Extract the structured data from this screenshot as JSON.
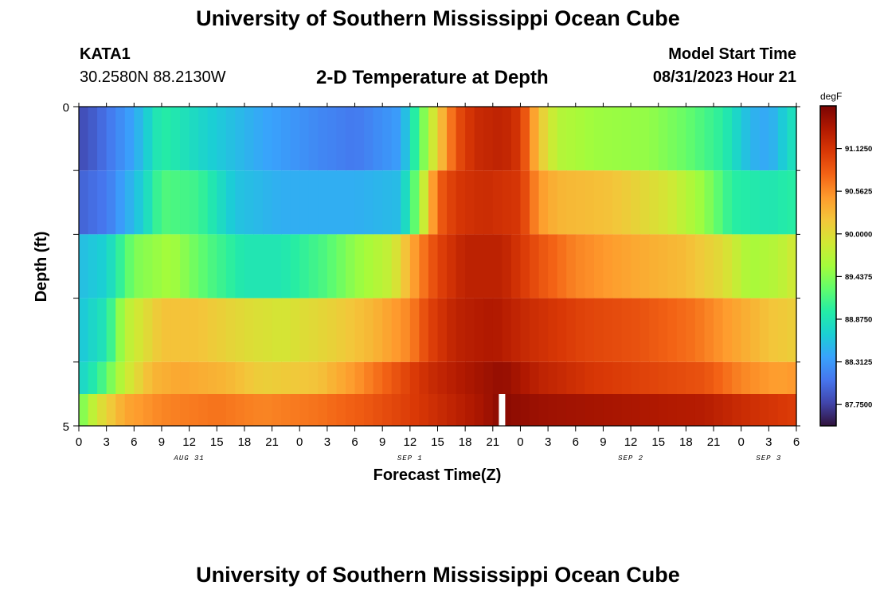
{
  "header": {
    "title": "University of Southern Mississippi Ocean Cube",
    "station": "KATA1",
    "coords": "30.2580N  88.2130W",
    "subtitle": "2-D Temperature at Depth",
    "model_start_label": "Model Start Time",
    "model_start_value": "08/31/2023 Hour 21"
  },
  "footer": {
    "title": "University of Southern Mississippi Ocean Cube"
  },
  "colorbar": {
    "unit": "degF",
    "min": 87.46875,
    "max": 91.6875,
    "tick_values": [
      91.125,
      90.5625,
      90.0,
      89.4375,
      88.875,
      88.3125,
      87.75
    ],
    "tick_labels": [
      "91.1250",
      "90.5625",
      "90.0000",
      "89.4375",
      "88.8750",
      "88.3125",
      "87.7500"
    ],
    "stops": [
      "#30123b",
      "#4145ab",
      "#4675ed",
      "#39a2fc",
      "#1bcfd4",
      "#24eca6",
      "#61fc6c",
      "#a4fc3b",
      "#d1e834",
      "#f3c63a",
      "#fe9b2d",
      "#f36315",
      "#d93806",
      "#b11901",
      "#7a0403"
    ]
  },
  "chart_data": {
    "type": "heatmap",
    "xlabel": "Forecast Time(Z)",
    "ylabel": "Depth (ft)",
    "y_tick_labels": [
      "0",
      "5"
    ],
    "ylim": [
      0,
      5
    ],
    "depth_bands": 5,
    "x_tick_labels": [
      "0",
      "3",
      "6",
      "9",
      "12",
      "15",
      "18",
      "21",
      "0",
      "3",
      "6",
      "9",
      "12",
      "15",
      "18",
      "21",
      "0",
      "3",
      "6",
      "9",
      "12",
      "15",
      "18",
      "21",
      "0",
      "3",
      "6"
    ],
    "x_start_hour": 0,
    "x_end_hour": 78,
    "date_labels": [
      {
        "label": "AUG 31",
        "hour": 12
      },
      {
        "label": "SEP 1",
        "hour": 36
      },
      {
        "label": "SEP 2",
        "hour": 60
      },
      {
        "label": "SEP 3",
        "hour": 75
      }
    ],
    "marker_hour": 46,
    "rows": [
      {
        "depth_band": "0-1 ft",
        "keys": [
          [
            0,
            87.8
          ],
          [
            2,
            87.95
          ],
          [
            6,
            88.4
          ],
          [
            9,
            89.0
          ],
          [
            14,
            88.7
          ],
          [
            20,
            88.4
          ],
          [
            26,
            88.2
          ],
          [
            30,
            88.1
          ],
          [
            35,
            88.35
          ],
          [
            37,
            89.2
          ],
          [
            39,
            90.1
          ],
          [
            41,
            90.9
          ],
          [
            43,
            91.2
          ],
          [
            46,
            91.3
          ],
          [
            48,
            91.1
          ],
          [
            50,
            90.2
          ],
          [
            52,
            89.7
          ],
          [
            56,
            89.55
          ],
          [
            62,
            89.5
          ],
          [
            66,
            89.3
          ],
          [
            70,
            89.0
          ],
          [
            73,
            88.5
          ],
          [
            75,
            88.4
          ],
          [
            78,
            88.9
          ]
        ]
      },
      {
        "depth_band": "1-2 ft",
        "keys": [
          [
            0,
            87.95
          ],
          [
            3,
            88.1
          ],
          [
            7,
            88.7
          ],
          [
            9,
            89.2
          ],
          [
            13,
            89.1
          ],
          [
            17,
            88.6
          ],
          [
            22,
            88.45
          ],
          [
            30,
            88.45
          ],
          [
            35,
            88.55
          ],
          [
            37,
            89.5
          ],
          [
            39,
            90.8
          ],
          [
            41,
            91.1
          ],
          [
            44,
            91.2
          ],
          [
            48,
            91.1
          ],
          [
            50,
            90.5
          ],
          [
            52,
            90.3
          ],
          [
            58,
            90.2
          ],
          [
            64,
            89.9
          ],
          [
            68,
            89.5
          ],
          [
            71,
            89.0
          ],
          [
            75,
            88.9
          ],
          [
            78,
            89.0
          ]
        ]
      },
      {
        "depth_band": "2-3 ft",
        "keys": [
          [
            0,
            88.55
          ],
          [
            3,
            88.7
          ],
          [
            6,
            89.4
          ],
          [
            10,
            89.6
          ],
          [
            14,
            89.2
          ],
          [
            18,
            88.9
          ],
          [
            22,
            88.9
          ],
          [
            27,
            89.2
          ],
          [
            30,
            89.5
          ],
          [
            34,
            89.8
          ],
          [
            37,
            90.6
          ],
          [
            39,
            91.0
          ],
          [
            42,
            91.3
          ],
          [
            46,
            91.3
          ],
          [
            50,
            90.9
          ],
          [
            54,
            90.6
          ],
          [
            60,
            90.4
          ],
          [
            66,
            90.25
          ],
          [
            70,
            90.0
          ],
          [
            73,
            89.6
          ],
          [
            76,
            89.7
          ],
          [
            78,
            89.9
          ]
        ]
      },
      {
        "depth_band": "3-4 ft",
        "keys": [
          [
            0,
            88.6
          ],
          [
            3,
            88.9
          ],
          [
            5,
            89.7
          ],
          [
            9,
            90.2
          ],
          [
            13,
            90.2
          ],
          [
            18,
            90.0
          ],
          [
            22,
            89.9
          ],
          [
            28,
            90.1
          ],
          [
            32,
            90.3
          ],
          [
            36,
            90.6
          ],
          [
            38,
            91.0
          ],
          [
            41,
            91.3
          ],
          [
            45,
            91.4
          ],
          [
            49,
            91.2
          ],
          [
            55,
            91.0
          ],
          [
            61,
            90.9
          ],
          [
            67,
            90.7
          ],
          [
            70,
            90.5
          ],
          [
            75,
            90.2
          ],
          [
            78,
            90.1
          ]
        ]
      },
      {
        "depth_band": "4-5 ft",
        "keys": [
          [
            0,
            88.7
          ],
          [
            2,
            89.0
          ],
          [
            5,
            89.8
          ],
          [
            8,
            90.3
          ],
          [
            11,
            90.4
          ],
          [
            16,
            90.3
          ],
          [
            20,
            90.1
          ],
          [
            26,
            90.2
          ],
          [
            30,
            90.5
          ],
          [
            34,
            90.85
          ],
          [
            38,
            91.2
          ],
          [
            42,
            91.4
          ],
          [
            46,
            91.55
          ],
          [
            50,
            91.3
          ],
          [
            56,
            91.1
          ],
          [
            62,
            91.0
          ],
          [
            68,
            90.9
          ],
          [
            72,
            90.6
          ],
          [
            76,
            90.45
          ],
          [
            78,
            90.5
          ]
        ]
      },
      {
        "depth_band": "5 ft",
        "keys": [
          [
            0,
            89.3
          ],
          [
            2,
            89.9
          ],
          [
            5,
            90.4
          ],
          [
            9,
            90.6
          ],
          [
            15,
            90.7
          ],
          [
            20,
            90.6
          ],
          [
            26,
            90.7
          ],
          [
            31,
            90.85
          ],
          [
            36,
            91.05
          ],
          [
            40,
            91.25
          ],
          [
            44,
            91.45
          ],
          [
            46,
            91.6
          ],
          [
            50,
            91.5
          ],
          [
            56,
            91.45
          ],
          [
            62,
            91.4
          ],
          [
            68,
            91.35
          ],
          [
            72,
            91.2
          ],
          [
            78,
            91.05
          ]
        ]
      }
    ]
  }
}
